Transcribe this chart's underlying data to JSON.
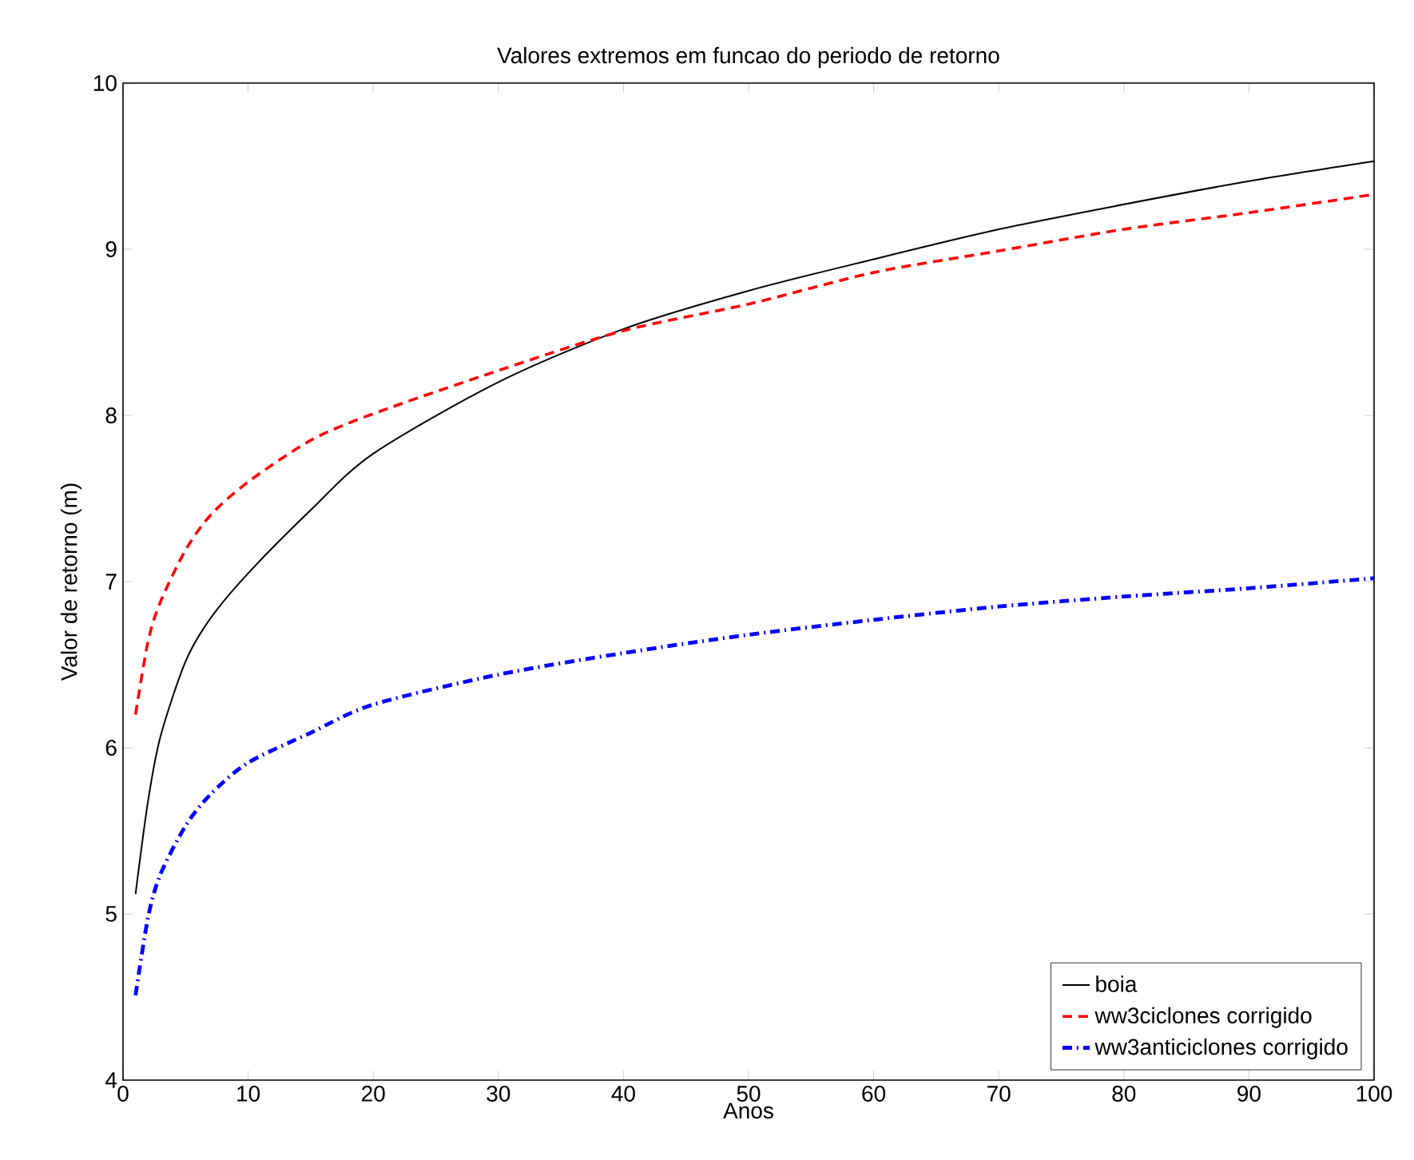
{
  "chart_data": {
    "type": "line",
    "title": "Valores extremos em funcao do periodo de retorno",
    "xlabel": "Anos",
    "ylabel": "Valor de retorno (m)",
    "x": [
      1,
      2,
      3,
      5,
      7,
      10,
      15,
      20,
      30,
      40,
      50,
      60,
      70,
      80,
      90,
      100
    ],
    "series": [
      {
        "name": "boia",
        "color": "#000000",
        "line_style": "solid",
        "values": [
          5.12,
          5.68,
          6.07,
          6.52,
          6.78,
          7.05,
          7.43,
          7.77,
          8.2,
          8.52,
          8.75,
          8.94,
          9.12,
          9.27,
          9.41,
          9.53
        ]
      },
      {
        "name": "ww3ciclones corrigido",
        "color": "#ff0000",
        "line_style": "dashed",
        "values": [
          6.2,
          6.64,
          6.88,
          7.19,
          7.4,
          7.6,
          7.85,
          8.01,
          8.27,
          8.51,
          8.67,
          8.86,
          8.99,
          9.12,
          9.22,
          9.33
        ]
      },
      {
        "name": "ww3anticiclones corrigido",
        "color": "#0000ff",
        "line_style": "dashdot",
        "values": [
          4.51,
          4.98,
          5.24,
          5.53,
          5.72,
          5.91,
          6.09,
          6.26,
          6.44,
          6.57,
          6.68,
          6.77,
          6.85,
          6.91,
          6.96,
          7.02
        ]
      }
    ],
    "xlim": [
      0,
      100
    ],
    "xticks": [
      0,
      10,
      20,
      30,
      40,
      50,
      60,
      70,
      80,
      90,
      100
    ],
    "ylim": [
      4,
      10
    ],
    "yticks": [
      4,
      5,
      6,
      7,
      8,
      9,
      10
    ],
    "grid": false,
    "legend": "bottom right",
    "marker": "none"
  }
}
